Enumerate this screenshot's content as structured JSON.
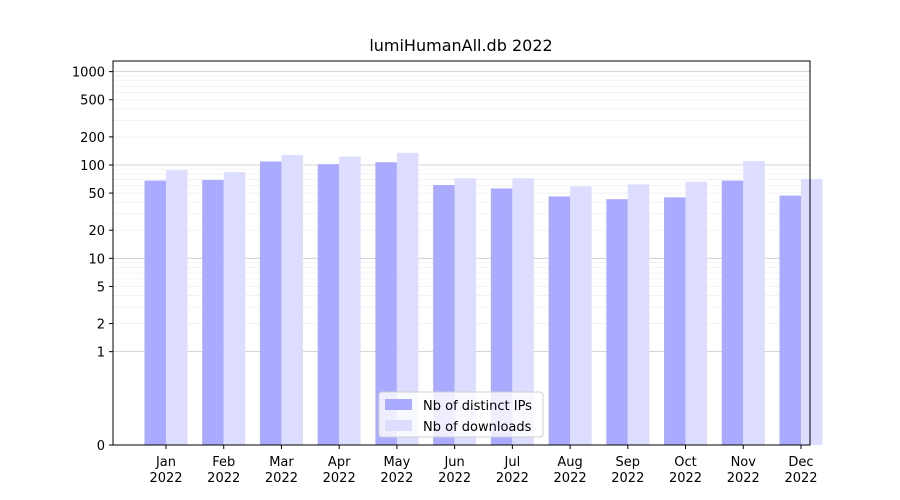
{
  "chart_data": {
    "type": "bar",
    "title": "lumiHumanAll.db 2022",
    "xlabel": "",
    "ylabel": "",
    "y_scale": "symlog",
    "ylim": [
      0,
      1300
    ],
    "yticks": [
      0,
      1,
      2,
      5,
      10,
      20,
      50,
      100,
      200,
      500,
      1000
    ],
    "grid": true,
    "legend_position": "lower center",
    "categories": [
      "Jan\n2022",
      "Feb\n2022",
      "Mar\n2022",
      "Apr\n2022",
      "May\n2022",
      "Jun\n2022",
      "Jul\n2022",
      "Aug\n2022",
      "Sep\n2022",
      "Oct\n2022",
      "Nov\n2022",
      "Dec\n2022"
    ],
    "series": [
      {
        "name": "Nb of distinct IPs",
        "color": "#aaaaff",
        "values": [
          68,
          69,
          109,
          102,
          107,
          61,
          56,
          46,
          43,
          45,
          68,
          47
        ]
      },
      {
        "name": "Nb of downloads",
        "color": "#ddddff",
        "values": [
          88,
          84,
          128,
          123,
          135,
          72,
          72,
          59,
          62,
          66,
          110,
          71
        ]
      }
    ]
  }
}
